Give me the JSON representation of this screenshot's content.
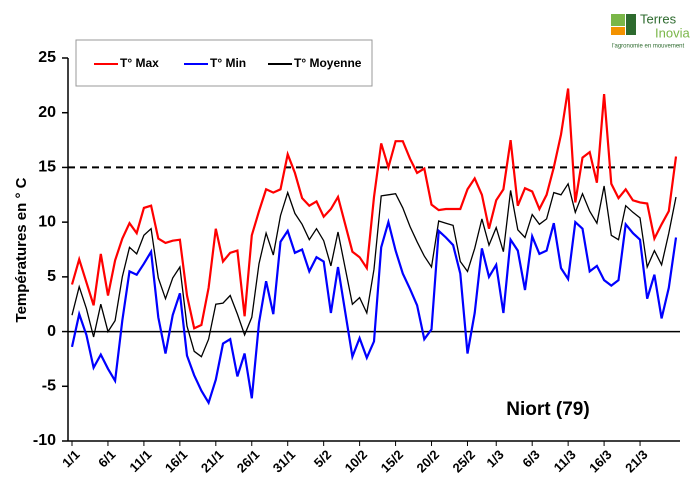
{
  "chart_data": {
    "type": "line",
    "y_label": "Températures en ° C",
    "annotation": "Niort (79)",
    "logo": {
      "name_1": "Terres",
      "name_2": "Inovia",
      "tagline": "l'agronomie en mouvement"
    },
    "categories": [
      "1/1",
      null,
      null,
      null,
      null,
      "6/1",
      null,
      null,
      null,
      null,
      "11/1",
      null,
      null,
      null,
      null,
      "16/1",
      null,
      null,
      null,
      null,
      "21/1",
      null,
      null,
      null,
      null,
      "26/1",
      null,
      null,
      null,
      null,
      "31/1",
      null,
      null,
      null,
      null,
      "5/2",
      null,
      null,
      null,
      null,
      "10/2",
      null,
      null,
      null,
      null,
      "15/2",
      null,
      null,
      null,
      null,
      "20/2",
      null,
      null,
      null,
      null,
      "25/2",
      null,
      null,
      null,
      "1/3",
      null,
      null,
      null,
      null,
      "6/3",
      null,
      null,
      null,
      null,
      "11/3",
      null,
      null,
      null,
      null,
      "16/3",
      null,
      null,
      null,
      null,
      "21/3",
      null,
      null,
      null,
      null,
      null
    ],
    "series": [
      {
        "name": "T° Max",
        "color": "#ff0000",
        "values": [
          4.3,
          6.6,
          4.5,
          2.4,
          7.1,
          3.3,
          6.5,
          8.5,
          9.9,
          9.0,
          11.3,
          11.5,
          8.5,
          8.1,
          8.3,
          8.4,
          3.3,
          0.3,
          0.6,
          4.0,
          9.4,
          6.4,
          7.2,
          7.4,
          1.4,
          8.8,
          11.0,
          13.0,
          12.7,
          13.0,
          16.2,
          14.5,
          12.2,
          11.5,
          11.9,
          10.5,
          11.2,
          12.3,
          9.8,
          7.3,
          6.8,
          5.8,
          12.3,
          17.2,
          15.0,
          17.4,
          17.4,
          15.8,
          14.5,
          14.9,
          11.6,
          11.1,
          11.2,
          11.2,
          11.2,
          13.0,
          14.0,
          12.5,
          9.4,
          12.0,
          13.0,
          17.5,
          11.5,
          13.1,
          12.8,
          11.2,
          12.5,
          15.0,
          18.0,
          22.2,
          11.8,
          15.9,
          16.4,
          13.6,
          21.7,
          13.5,
          12.2,
          13.0,
          12.0,
          11.8,
          11.7,
          8.5,
          9.8,
          11.0,
          16.0
        ]
      },
      {
        "name": "T° Min",
        "color": "#0000ff",
        "values": [
          -1.4,
          1.6,
          -0.3,
          -3.3,
          -2.1,
          -3.4,
          -4.5,
          1.0,
          5.5,
          5.2,
          6.2,
          7.3,
          1.3,
          -2.0,
          1.5,
          3.5,
          -2.2,
          -4.0,
          -5.4,
          -6.5,
          -4.4,
          -1.1,
          -0.7,
          -4.1,
          -2.0,
          -6.1,
          0.8,
          4.6,
          1.6,
          8.2,
          9.2,
          7.2,
          7.5,
          5.5,
          6.8,
          6.4,
          1.7,
          5.9,
          1.8,
          -2.3,
          -0.6,
          -2.4,
          -0.9,
          7.7,
          10.0,
          7.4,
          5.3,
          3.9,
          2.4,
          -0.7,
          0.2,
          9.2,
          8.6,
          7.9,
          5.3,
          -2.0,
          1.7,
          7.6,
          5.0,
          6.1,
          1.7,
          8.4,
          7.4,
          3.8,
          8.7,
          7.1,
          7.4,
          9.9,
          5.8,
          4.8,
          10.0,
          9.4,
          5.5,
          6.0,
          4.7,
          4.2,
          4.7,
          9.8,
          9.0,
          8.4,
          3.0,
          5.2,
          1.2,
          4.0,
          8.6
        ]
      },
      {
        "name": "T° Moyenne",
        "color": "#000000",
        "values": [
          1.5,
          4.1,
          2.1,
          -0.5,
          2.5,
          0.0,
          1.0,
          5.0,
          7.7,
          7.1,
          8.8,
          9.4,
          4.9,
          3.0,
          4.9,
          5.9,
          0.5,
          -1.8,
          -2.3,
          -0.7,
          2.5,
          2.6,
          3.3,
          1.6,
          -0.3,
          1.3,
          6.2,
          9.0,
          7.0,
          10.6,
          12.7,
          10.8,
          9.8,
          8.4,
          9.4,
          8.3,
          6.0,
          9.1,
          5.8,
          2.5,
          3.1,
          1.7,
          5.7,
          12.4,
          12.5,
          12.6,
          11.3,
          9.6,
          8.2,
          6.9,
          5.9,
          10.1,
          9.9,
          9.7,
          6.4,
          5.5,
          7.6,
          10.3,
          7.9,
          9.5,
          7.3,
          12.9,
          9.3,
          8.6,
          10.7,
          9.8,
          10.3,
          12.7,
          12.5,
          13.5,
          10.9,
          12.6,
          11.0,
          9.9,
          13.3,
          8.8,
          8.4,
          11.5,
          10.9,
          10.4,
          5.9,
          7.4,
          6.1,
          9.0,
          12.3
        ]
      }
    ],
    "ylim": [
      -10,
      25
    ],
    "yticks": [
      -10,
      -5,
      0,
      5,
      10,
      15,
      20,
      25
    ],
    "reference_line": 15,
    "zero_line": 0,
    "grid": false,
    "legend": "top-left"
  }
}
